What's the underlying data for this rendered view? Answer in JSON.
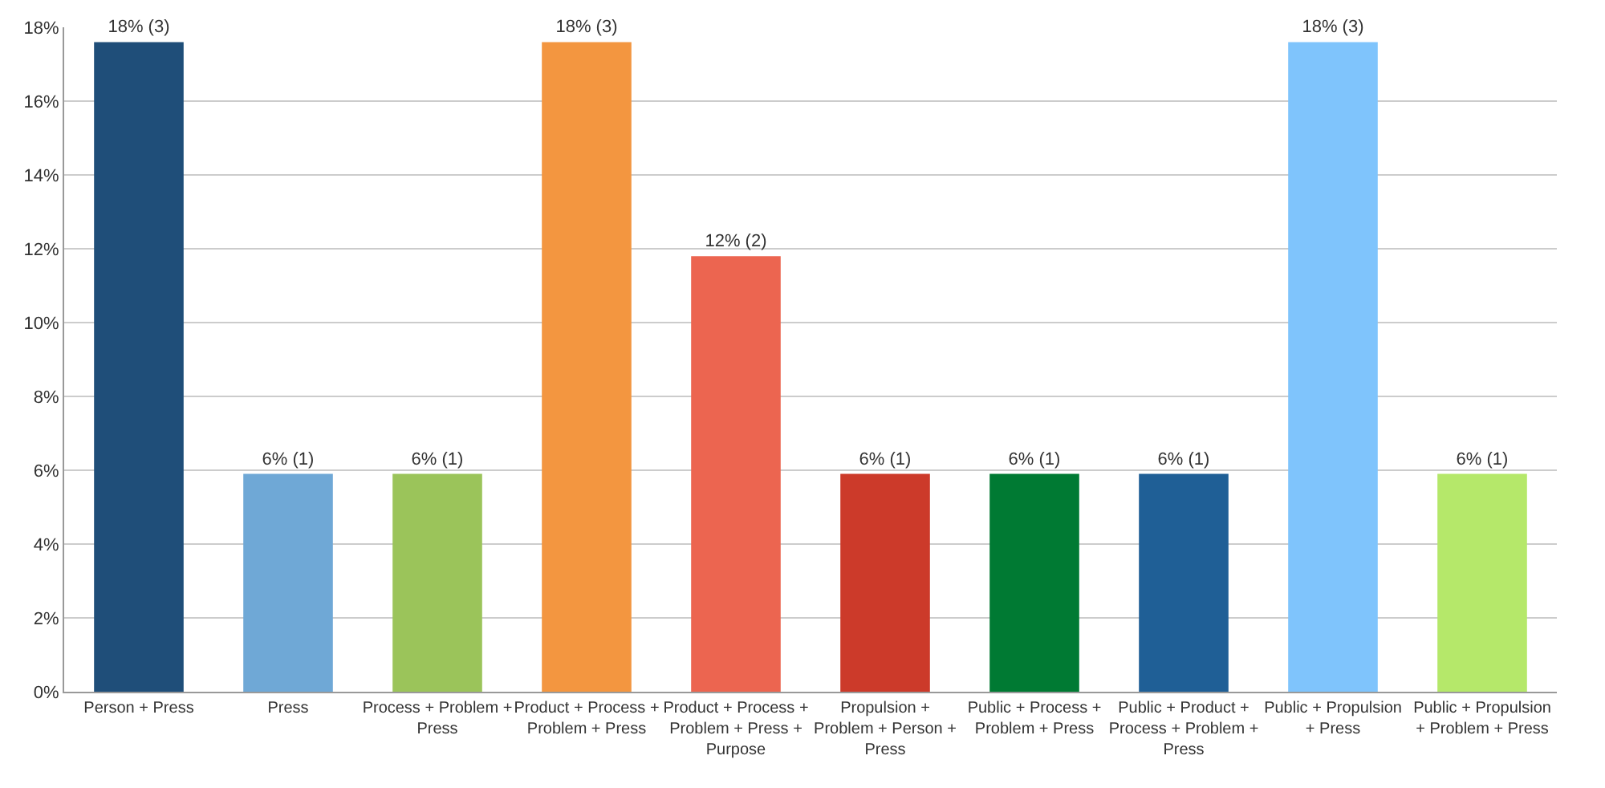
{
  "chart_data": {
    "type": "bar",
    "categories": [
      "Person + Press",
      "Press",
      "Process + Problem + Press",
      "Product + Process + Problem + Press",
      "Product + Process + Problem + Press + Purpose",
      "Propulsion + Problem + Person + Press",
      "Public + Process + Problem + Press",
      "Public + Product + Process + Problem + Press",
      "Public + Propulsion + Press",
      "Public + Propulsion + Problem + Press"
    ],
    "values": [
      17.6,
      5.9,
      5.9,
      17.6,
      11.8,
      5.9,
      5.9,
      5.9,
      17.6,
      5.9
    ],
    "value_labels": [
      "18% (3)",
      "6% (1)",
      "6% (1)",
      "18% (3)",
      "12% (2)",
      "6% (1)",
      "6% (1)",
      "6% (1)",
      "18% (3)",
      "6% (1)"
    ],
    "colors": [
      "#1f4e79",
      "#6fa8d6",
      "#9bc45a",
      "#f39640",
      "#ec6550",
      "#cc3a2a",
      "#007a33",
      "#1f5f96",
      "#7fc4fc",
      "#b5e86a"
    ],
    "ylim": [
      0,
      18
    ],
    "yticks": [
      {
        "value": 0,
        "label": "0%"
      },
      {
        "value": 2,
        "label": "2%"
      },
      {
        "value": 4,
        "label": "4%"
      },
      {
        "value": 6,
        "label": "6%"
      },
      {
        "value": 8,
        "label": "8%"
      },
      {
        "value": 10,
        "label": "10%"
      },
      {
        "value": 12,
        "label": "12%"
      },
      {
        "value": 14,
        "label": "14%"
      },
      {
        "value": 16,
        "label": "16%"
      },
      {
        "value": 18,
        "label": "18%"
      }
    ],
    "grid": "y",
    "legend": false
  }
}
